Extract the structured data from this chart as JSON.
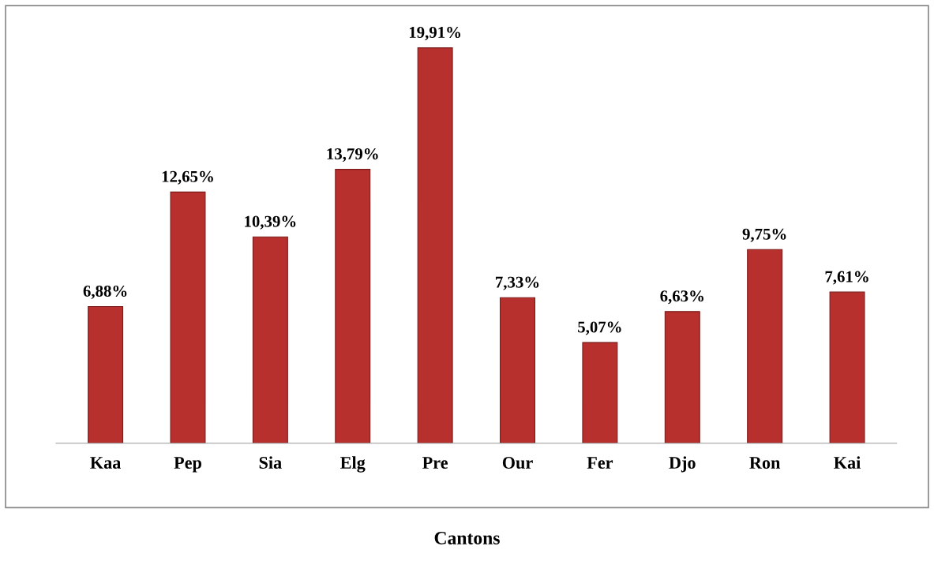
{
  "chart_data": {
    "type": "bar",
    "xlabel": "Cantons",
    "categories": [
      "Kaa",
      "Pep",
      "Sia",
      "Elg",
      "Pre",
      "Our",
      "Fer",
      "Djo",
      "Ron",
      "Kai"
    ],
    "values": [
      6.88,
      12.65,
      10.39,
      13.79,
      19.91,
      7.33,
      5.07,
      6.63,
      9.75,
      7.61
    ],
    "value_labels": [
      "6,88%",
      "12,65%",
      "10,39%",
      "13,79%",
      "19,91%",
      "7,33%",
      "5,07%",
      "6,63%",
      "9,75%",
      "7,61%"
    ],
    "color": "#b8302e",
    "grid": false,
    "legend": false
  }
}
